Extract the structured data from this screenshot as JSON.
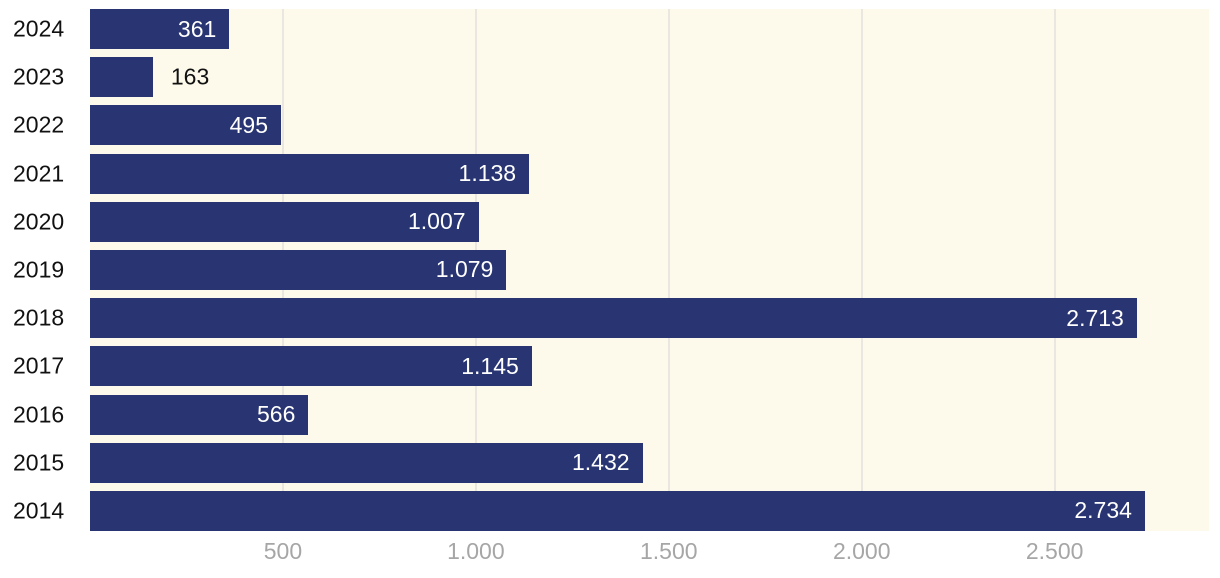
{
  "chart_data": {
    "type": "bar",
    "orientation": "horizontal",
    "title": "",
    "xlabel": "",
    "ylabel": "",
    "categories": [
      "2024",
      "2023",
      "2022",
      "2021",
      "2020",
      "2019",
      "2018",
      "2017",
      "2016",
      "2015",
      "2014"
    ],
    "values": [
      361,
      163,
      495,
      1138,
      1007,
      1079,
      2713,
      1145,
      566,
      1432,
      2734
    ],
    "value_labels": [
      "361",
      "163",
      "495",
      "1.138",
      "1.007",
      "1.079",
      "2.713",
      "1.145",
      "566",
      "1.432",
      "2.734"
    ],
    "xlim": [
      0,
      2900
    ],
    "x_ticks": [
      {
        "value": 500,
        "label": "500"
      },
      {
        "value": 1000,
        "label": "1.000"
      },
      {
        "value": 1500,
        "label": "1.500"
      },
      {
        "value": 2000,
        "label": "2.000"
      },
      {
        "value": 2500,
        "label": "2.500"
      }
    ],
    "grid": "vertical-lines",
    "legend": "none"
  },
  "colors": {
    "bar": "#293572",
    "plot_background": "#fdfaeb",
    "gridline": "#e9e7e0",
    "tick_label": "#a6a6a6",
    "category_label": "#111111",
    "value_label_inside": "#ffffff",
    "value_label_outside": "#111111"
  }
}
